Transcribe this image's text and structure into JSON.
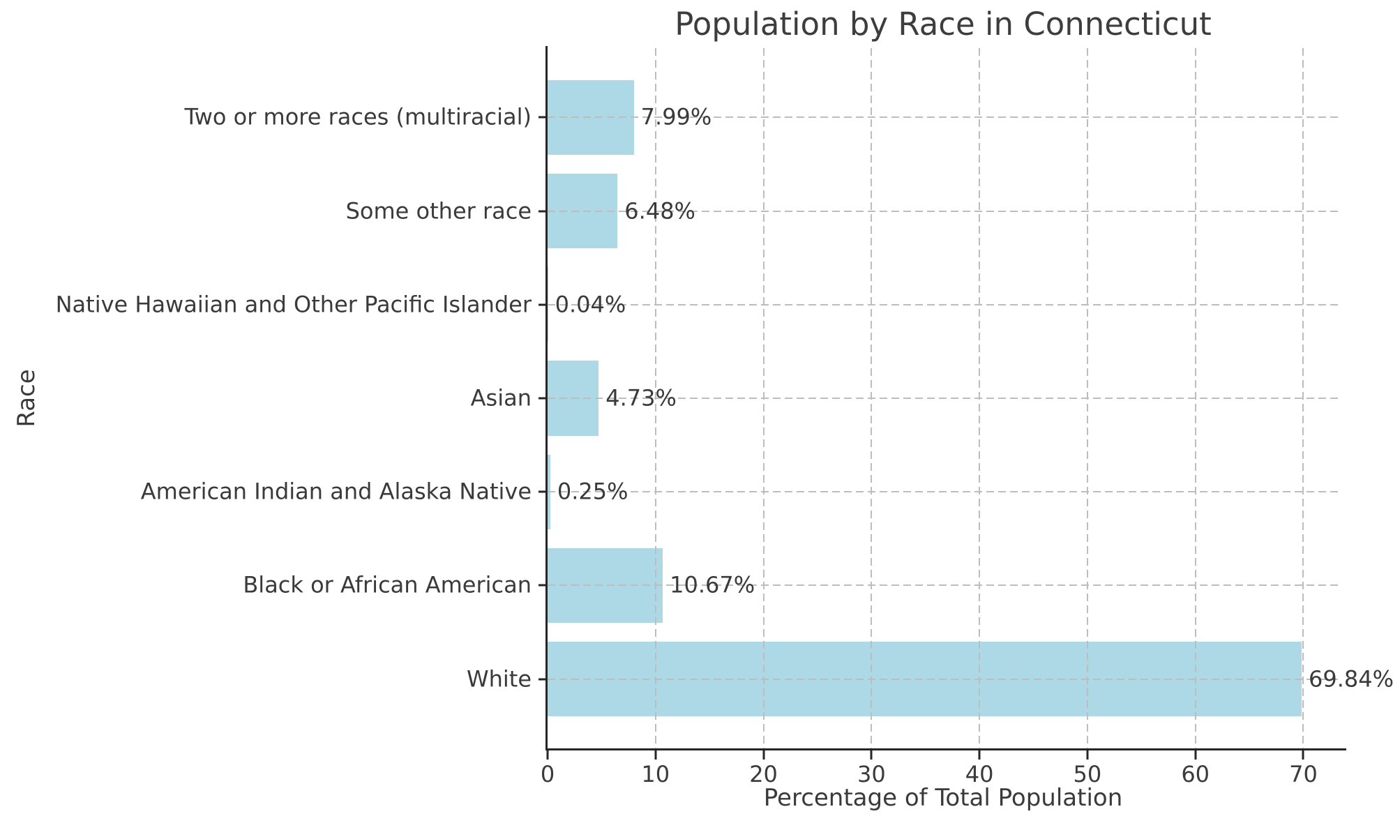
{
  "chart_data": {
    "type": "bar",
    "orientation": "horizontal",
    "title": "Population by Race in Connecticut",
    "xlabel": "Percentage of Total Population",
    "ylabel": "Race",
    "categories": [
      "Two or more races (multiracial)",
      "Some other race",
      "Native Hawaiian and Other Pacific Islander",
      "Asian",
      "American Indian and Alaska Native",
      "Black or African American",
      "White"
    ],
    "values": [
      7.99,
      6.48,
      0.04,
      4.73,
      0.25,
      10.67,
      69.84
    ],
    "value_labels": [
      "7.99%",
      "6.48%",
      "0.04%",
      "4.73%",
      "0.25%",
      "10.67%",
      "69.84%"
    ],
    "xticks": [
      0,
      10,
      20,
      30,
      40,
      50,
      60,
      70
    ],
    "xtick_labels": [
      "0",
      "10",
      "20",
      "30",
      "40",
      "50",
      "60",
      "70"
    ],
    "xlim": [
      0,
      73.33
    ],
    "grid": "dashed",
    "legend": "none",
    "bar_color": "#ADD8E6",
    "grid_color": "#bdbdbd",
    "axis_color": "#262626",
    "text_color": "#3a3a3a",
    "background_color": "#ffffff"
  }
}
